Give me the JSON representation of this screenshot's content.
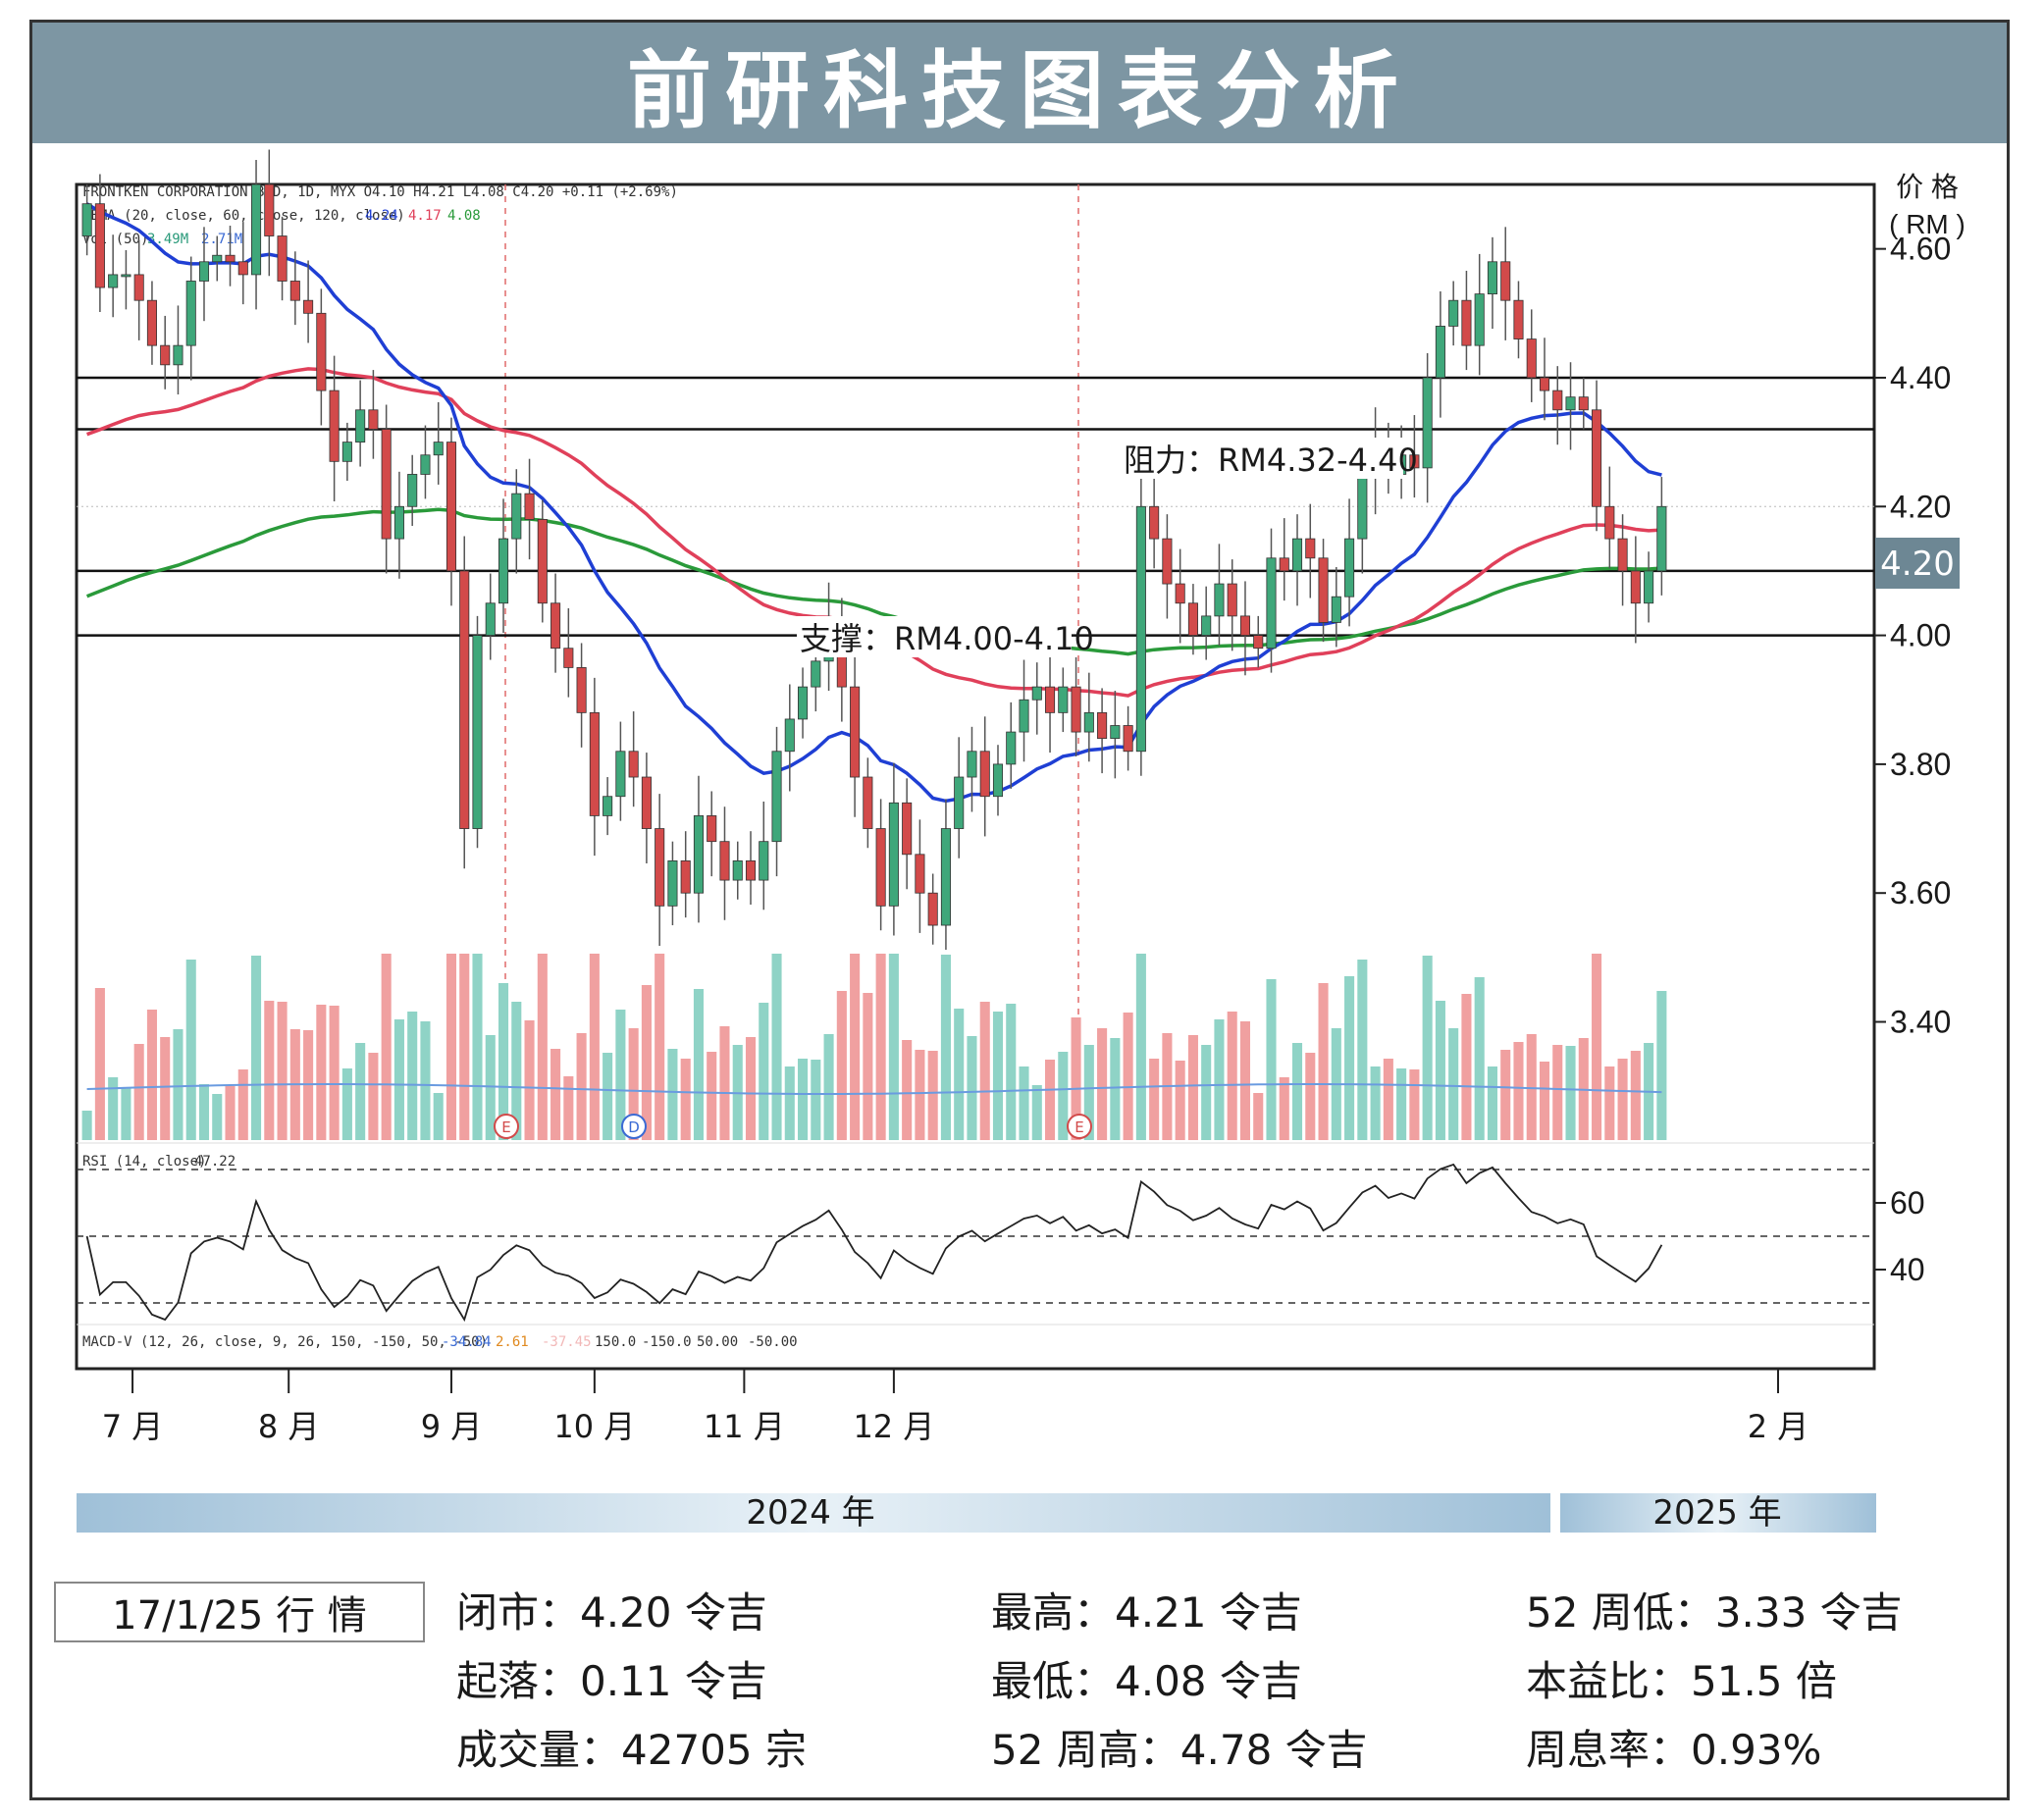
{
  "title": "前研科技图表分析",
  "chart_header": {
    "line1": "FRONTKEN CORPORATION BHD, 1D, MYX  O4.10  H4.21  L4.08  C4.20  +0.11 (+2.69%)",
    "ema_label": "3EMA (20, close, 60, close, 120, close)",
    "ema_values": [
      "4.24",
      "4.17",
      "4.08"
    ],
    "vol_label": "Vol (50)",
    "vol_values": [
      "3.49M",
      "2.71M"
    ],
    "rsi_label": "RSI (14, close)",
    "rsi_value": "47.22",
    "macd_label": "MACD-V (12, 26, close, 9, 26, 150, -150, 50, -50)",
    "macd_values": [
      "-34.84",
      "2.61",
      "-37.45",
      "150.0",
      "-150.0",
      "50.00",
      "-50.00"
    ]
  },
  "price_axis_title": [
    "价 格",
    "( RM )"
  ],
  "annotations": {
    "resistance": "阻力：RM4.32-4.40",
    "support": "支撑：RM4.00-4.10",
    "last_price": "4.20"
  },
  "year_bands": [
    "2024 年",
    "2025 年"
  ],
  "chart_data": {
    "type": "candlestick",
    "price_ylim": [
      3.25,
      4.7
    ],
    "price_ticks": [
      "4.60",
      "4.40",
      "4.20",
      "4.00",
      "3.80",
      "3.60",
      "3.40"
    ],
    "rsi_ticks": [
      "60",
      "40"
    ],
    "x_ticks": [
      "7 月",
      "8 月",
      "9 月",
      "10 月",
      "11 月",
      "12 月",
      "2 月"
    ],
    "horizontal_levels": [
      4.4,
      4.32,
      4.1,
      4.0
    ],
    "earnings_markers": [
      "E",
      "D",
      "E"
    ],
    "colors": {
      "up": "#3fa77a",
      "down": "#d24a4a",
      "ema20": "#1f3fd4",
      "ema60": "#e0405a",
      "ema120": "#2a9a3a",
      "vol_ma": "#6a9be0",
      "vol_up": "#8fd3c6",
      "vol_down": "#f0a0a0"
    },
    "series": [
      {
        "name": "close",
        "values": [
          4.67,
          4.54,
          4.56,
          4.56,
          4.52,
          4.45,
          4.42,
          4.45,
          4.55,
          4.58,
          4.59,
          4.58,
          4.56,
          4.7,
          4.62,
          4.55,
          4.52,
          4.5,
          4.38,
          4.27,
          4.3,
          4.35,
          4.32,
          4.15,
          4.2,
          4.25,
          4.28,
          4.3,
          4.1,
          3.7,
          4.0,
          4.05,
          4.15,
          4.22,
          4.18,
          4.05,
          3.98,
          3.95,
          3.88,
          3.72,
          3.75,
          3.82,
          3.78,
          3.7,
          3.58,
          3.65,
          3.6,
          3.72,
          3.68,
          3.62,
          3.65,
          3.62,
          3.68,
          3.82,
          3.87,
          3.92,
          3.96,
          4.02,
          3.92,
          3.78,
          3.7,
          3.58,
          3.74,
          3.66,
          3.6,
          3.55,
          3.7,
          3.78,
          3.82,
          3.75,
          3.8,
          3.85,
          3.9,
          3.92,
          3.88,
          3.92,
          3.85,
          3.88,
          3.84,
          3.86,
          3.82,
          4.2,
          4.15,
          4.08,
          4.05,
          4.0,
          4.03,
          4.08,
          4.03,
          4.0,
          3.98,
          4.12,
          4.1,
          4.15,
          4.12,
          4.02,
          4.06,
          4.15,
          4.25,
          4.3,
          4.25,
          4.28,
          4.26,
          4.4,
          4.48,
          4.52,
          4.45,
          4.53,
          4.58,
          4.52,
          4.46,
          4.4,
          4.38,
          4.35,
          4.37,
          4.35,
          4.2,
          4.15,
          4.1,
          4.05,
          4.1,
          4.2
        ]
      }
    ]
  },
  "stats": {
    "date": "17/1/25 行 情",
    "close": "闭市：4.20 令吉",
    "change": "起落：0.11 令吉",
    "volume": "成交量：42705 宗",
    "high": "最高：4.21 令吉",
    "low": "最低：4.08 令吉",
    "week52_high": "52 周高：4.78 令吉",
    "week52_low": "52 周低：3.33 令吉",
    "pe": "本益比：51.5 倍",
    "yield": "周息率：0.93%"
  }
}
